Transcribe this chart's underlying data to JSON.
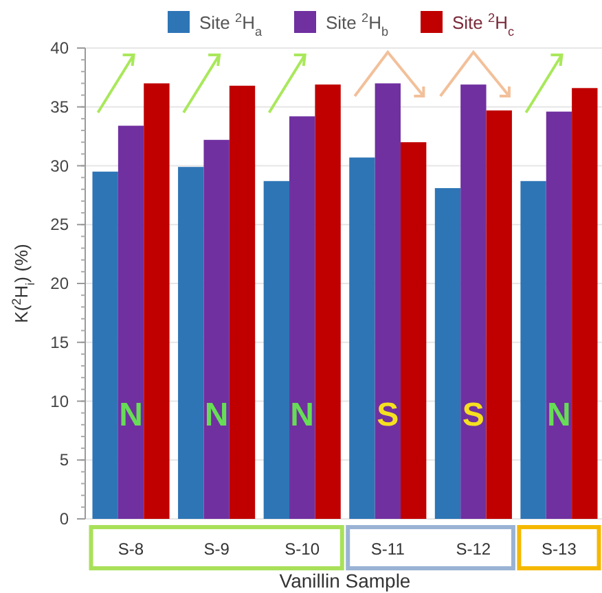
{
  "chart_data": {
    "type": "bar",
    "xlabel": "Vanillin Sample",
    "ylabel": "K($^{2}$H$_{i}$) (%)",
    "categories": [
      "S-8",
      "S-9",
      "S-10",
      "S-11",
      "S-12",
      "S-13"
    ],
    "series": [
      {
        "name": "Site $^{2}$H$_{a}$",
        "color": "#2e75b6",
        "values": [
          29.5,
          29.9,
          28.7,
          30.7,
          28.1,
          28.7
        ]
      },
      {
        "name": "Site $^{2}$H$_{b}$",
        "color": "#7030a0",
        "values": [
          33.4,
          32.2,
          34.2,
          37.0,
          36.9,
          34.6
        ]
      },
      {
        "name": "Site $^{2}$H$_{c}$",
        "color": "#c00000",
        "values": [
          37.0,
          36.8,
          36.9,
          32.0,
          34.7,
          36.6
        ]
      }
    ],
    "ylim": [
      0,
      40
    ],
    "yticks": [
      0,
      5,
      10,
      15,
      20,
      25,
      30,
      35,
      40
    ],
    "grid": "y",
    "legend": "top",
    "annotations": [
      "N",
      "N",
      "N",
      "S",
      "S",
      "N"
    ]
  }
}
